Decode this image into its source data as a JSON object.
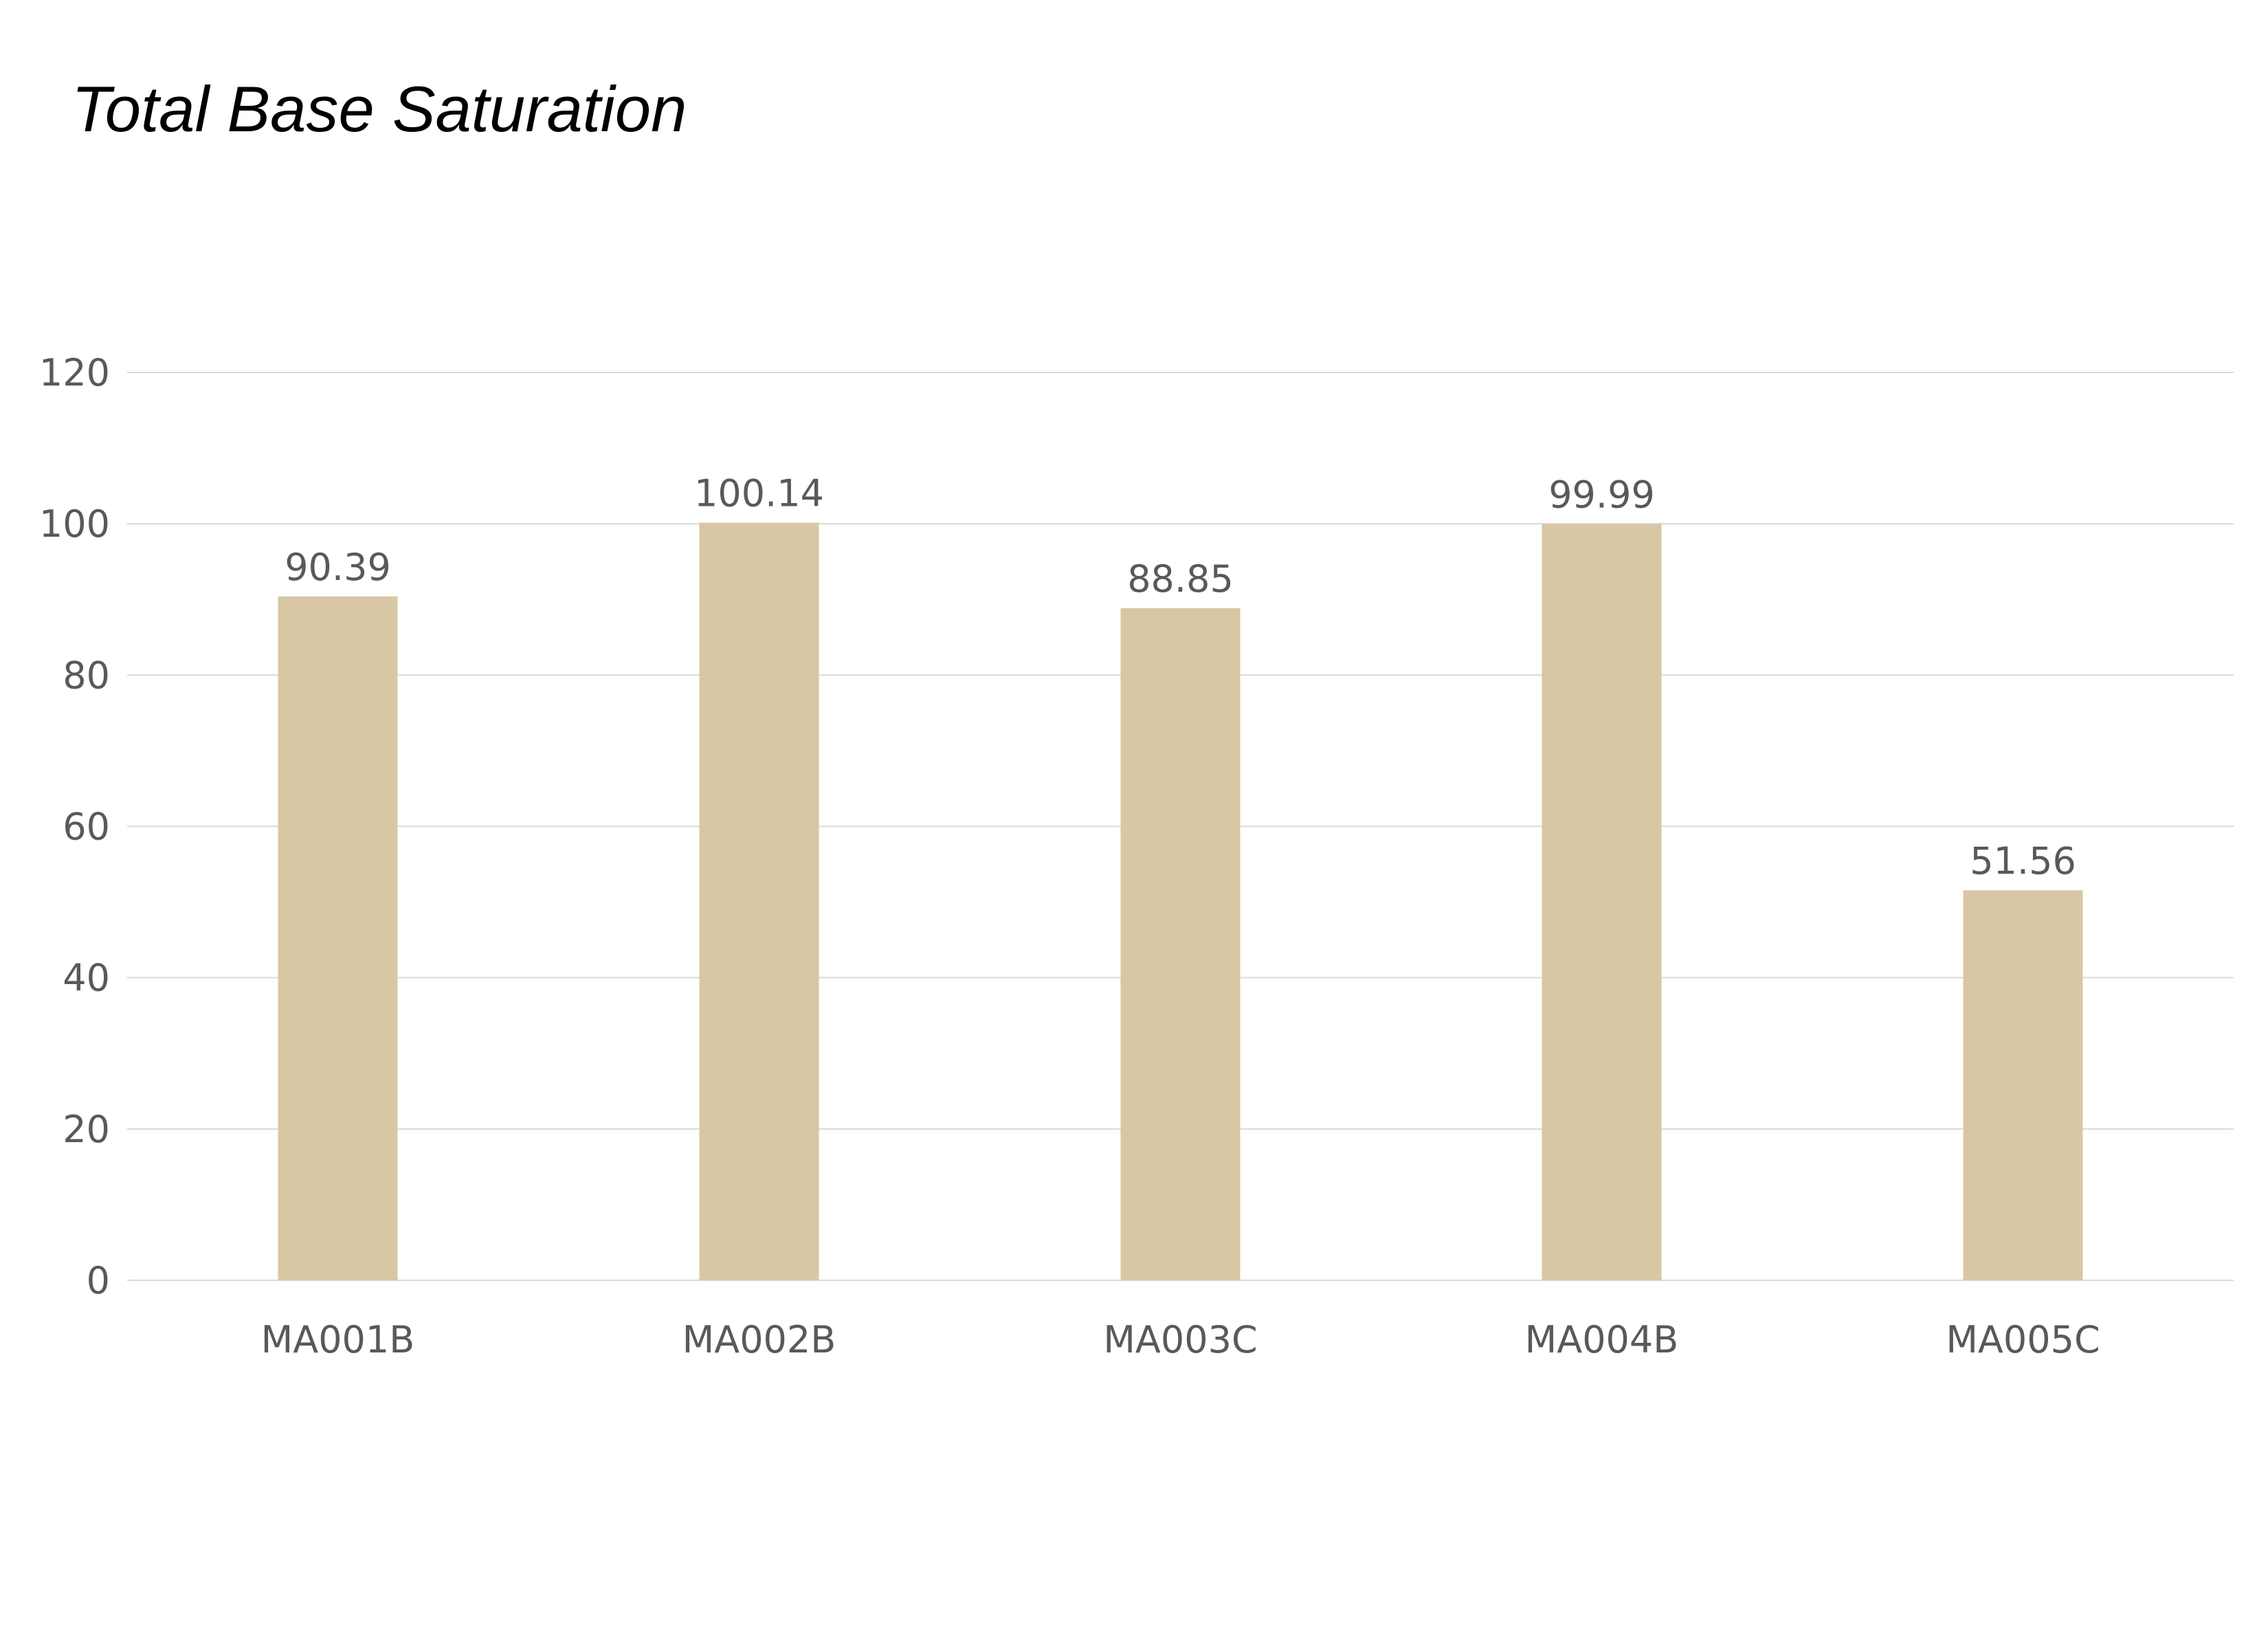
{
  "chart_data": {
    "type": "bar",
    "title": "Total Base Saturation",
    "xlabel": "",
    "ylabel": "",
    "categories": [
      "MA001B",
      "MA002B",
      "MA003C",
      "MA004B",
      "MA005C"
    ],
    "values": [
      90.39,
      100.14,
      88.85,
      99.99,
      51.56
    ],
    "data_labels": [
      "90.39",
      "100.14",
      "88.85",
      "99.99",
      "51.56"
    ],
    "y_ticks": [
      "0",
      "20",
      "40",
      "60",
      "80",
      "100",
      "120"
    ],
    "ylim": [
      0,
      120
    ],
    "grid": true,
    "legend": "none",
    "colors": {
      "bar": "#d8c7a5",
      "grid": "#d9d9d9",
      "text": "#595959"
    }
  }
}
